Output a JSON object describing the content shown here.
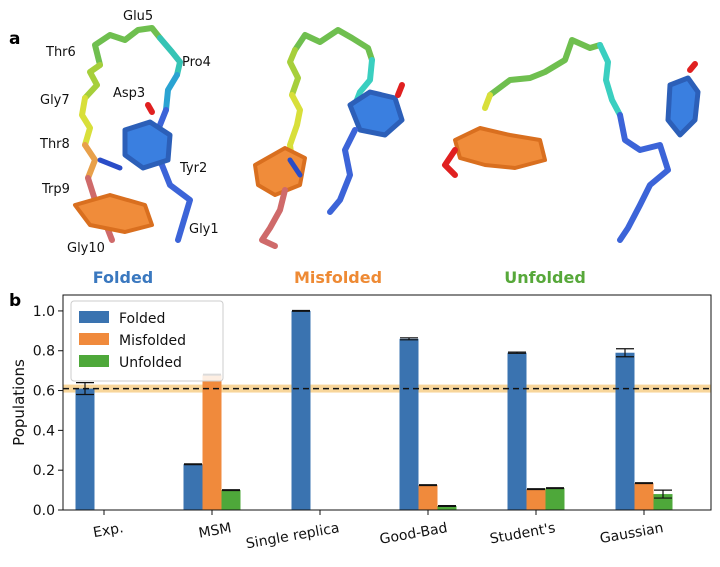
{
  "panel_a": {
    "letter": "a",
    "residues": [
      "Glu5",
      "Thr6",
      "Pro4",
      "Asp3",
      "Gly7",
      "Thr8",
      "Tyr2",
      "Trp9",
      "Gly1",
      "Gly10"
    ],
    "states": [
      {
        "label": "Folded",
        "color": "#3a78bf"
      },
      {
        "label": "Misfolded",
        "color": "#ee8a34"
      },
      {
        "label": "Unfolded",
        "color": "#57a83a"
      }
    ]
  },
  "panel_b": {
    "letter": "b"
  },
  "chart_data": {
    "type": "bar",
    "ylabel": "Populations",
    "ylim": [
      0,
      1.08
    ],
    "yticks": [
      "0.0",
      "0.2",
      "0.4",
      "0.6",
      "0.8",
      "1.0"
    ],
    "categories": [
      "Exp.",
      "MSM",
      "Single replica",
      "Good-Bad",
      "Student's",
      "Gaussian"
    ],
    "series": [
      {
        "name": "Folded",
        "color": "#3a73b0",
        "values": [
          0.61,
          0.23,
          1.0,
          0.86,
          0.79,
          0.79
        ],
        "errors": [
          0.03,
          0,
          0,
          0.005,
          0.003,
          0.02
        ]
      },
      {
        "name": "Misfolded",
        "color": "#f08a3c",
        "values": [
          0,
          0.68,
          0,
          0.125,
          0.105,
          0.135
        ],
        "errors": [
          0,
          0,
          0,
          0,
          0,
          0
        ]
      },
      {
        "name": "Unfolded",
        "color": "#4ea83a",
        "values": [
          0,
          0.1,
          0,
          0.02,
          0.11,
          0.08
        ],
        "errors": [
          0,
          0,
          0,
          0,
          0,
          0.02
        ]
      }
    ],
    "reference_line": {
      "value": 0.61,
      "band": [
        0.59,
        0.63
      ],
      "style": "dashed",
      "band_color": "#f5c87a"
    },
    "legend_position": "top-left",
    "grid": false
  }
}
